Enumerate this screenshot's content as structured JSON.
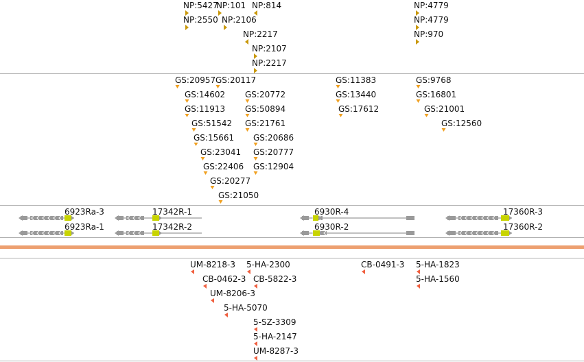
{
  "colors": {
    "np_marker": "#c9980a",
    "gs_marker": "#f0a020",
    "bottom_marker": "#f06040",
    "gene": "#9a9a9a",
    "exon_highlight": "#c8d400",
    "divider": "#eda070",
    "track_line": "#b0b0b0"
  },
  "np_features": [
    {
      "label": "NP:5427",
      "pos": 270,
      "row": 0,
      "dir": "right"
    },
    {
      "label": "NP:101",
      "pos": 318,
      "row": 0,
      "dir": "right"
    },
    {
      "label": "NP:814",
      "pos": 370,
      "row": 0,
      "dir": "left"
    },
    {
      "label": "NP:2550",
      "pos": 270,
      "row": 1,
      "dir": "right"
    },
    {
      "label": "NP:2106",
      "pos": 326,
      "row": 1,
      "dir": "right"
    },
    {
      "label": "NP:2217",
      "pos": 357,
      "row": 2,
      "dir": "left"
    },
    {
      "label": "NP:2107",
      "pos": 370,
      "row": 3,
      "dir": "right"
    },
    {
      "label": "NP:2217",
      "pos": 370,
      "row": 4,
      "dir": "right"
    },
    {
      "label": "NP:4779",
      "pos": 606,
      "row": 0,
      "dir": "right"
    },
    {
      "label": "NP:4779",
      "pos": 606,
      "row": 1,
      "dir": "right"
    },
    {
      "label": "NP:970",
      "pos": 606,
      "row": 2,
      "dir": "right"
    }
  ],
  "gs_features": [
    {
      "label": "GS:20957",
      "pos": 256,
      "row": 0
    },
    {
      "label": "GS:20117",
      "pos": 315,
      "row": 0
    },
    {
      "label": "GS:14602",
      "pos": 270,
      "row": 1
    },
    {
      "label": "GS:20772",
      "pos": 358,
      "row": 1
    },
    {
      "label": "GS:11913",
      "pos": 270,
      "row": 2
    },
    {
      "label": "GS:50894",
      "pos": 358,
      "row": 2
    },
    {
      "label": "GS:51542",
      "pos": 280,
      "row": 3
    },
    {
      "label": "GS:21761",
      "pos": 358,
      "row": 3
    },
    {
      "label": "GS:15661",
      "pos": 283,
      "row": 4
    },
    {
      "label": "GS:20686",
      "pos": 370,
      "row": 4
    },
    {
      "label": "GS:23041",
      "pos": 293,
      "row": 5
    },
    {
      "label": "GS:20777",
      "pos": 370,
      "row": 5
    },
    {
      "label": "GS:22406",
      "pos": 297,
      "row": 6
    },
    {
      "label": "GS:12904",
      "pos": 370,
      "row": 6
    },
    {
      "label": "GS:20277",
      "pos": 307,
      "row": 7
    },
    {
      "label": "GS:21050",
      "pos": 319,
      "row": 8
    },
    {
      "label": "GS:11383",
      "pos": 490,
      "row": 0
    },
    {
      "label": "GS:13440",
      "pos": 490,
      "row": 1
    },
    {
      "label": "GS:17612",
      "pos": 494,
      "row": 2
    },
    {
      "label": "GS:9768",
      "pos": 607,
      "row": 0
    },
    {
      "label": "GS:16801",
      "pos": 607,
      "row": 1
    },
    {
      "label": "GS:21001",
      "pos": 619,
      "row": 2
    },
    {
      "label": "GS:12560",
      "pos": 644,
      "row": 3
    }
  ],
  "transcripts": [
    {
      "label": "6923Ra-3",
      "start": 30,
      "end": 108,
      "row": 0,
      "exons": [
        [
          30,
          40
        ],
        [
          44,
          92
        ]
      ],
      "highlight": [
        94,
        104
      ],
      "tail_exon": null
    },
    {
      "label": "6923Ra-1",
      "start": 30,
      "end": 108,
      "row": 1,
      "exons": [
        [
          30,
          40
        ],
        [
          44,
          92
        ]
      ],
      "highlight": [
        94,
        104
      ],
      "tail_exon": null
    },
    {
      "label": "17342R-1",
      "start": 170,
      "end": 294,
      "row": 0,
      "exons": [
        [
          170,
          180
        ],
        [
          184,
          210
        ]
      ],
      "highlight": [
        222,
        232
      ],
      "tail_exon": null
    },
    {
      "label": "17342R-2",
      "start": 170,
      "end": 294,
      "row": 1,
      "exons": [
        [
          170,
          180
        ],
        [
          184,
          210
        ]
      ],
      "highlight": [
        222,
        232
      ],
      "tail_exon": null
    },
    {
      "label": "6930R-4",
      "start": 440,
      "end": 604,
      "row": 0,
      "exons": [
        [
          440,
          450
        ],
        [
          460,
          470
        ]
      ],
      "highlight": [
        456,
        464
      ],
      "tail_exon": [
        592,
        604
      ]
    },
    {
      "label": "6930R-2",
      "start": 440,
      "end": 604,
      "row": 1,
      "exons": [
        [
          440,
          450
        ],
        [
          466,
          476
        ]
      ],
      "highlight": [
        456,
        466
      ],
      "tail_exon": [
        592,
        604
      ]
    },
    {
      "label": "17360R-3",
      "start": 652,
      "end": 746,
      "row": 0,
      "exons": [
        [
          652,
          664
        ],
        [
          668,
          726
        ]
      ],
      "highlight": [
        730,
        742
      ],
      "tail_exon": null
    },
    {
      "label": "17360R-2",
      "start": 652,
      "end": 746,
      "row": 1,
      "exons": [
        [
          652,
          664
        ],
        [
          668,
          726
        ]
      ],
      "highlight": [
        730,
        742
      ],
      "tail_exon": null
    }
  ],
  "bottom_features": [
    {
      "label": "UM-8218-3",
      "pos": 278,
      "row": 0
    },
    {
      "label": "5-HA-2300",
      "pos": 360,
      "row": 0
    },
    {
      "label": "CB-0462-3",
      "pos": 296,
      "row": 1
    },
    {
      "label": "CB-5822-3",
      "pos": 370,
      "row": 1
    },
    {
      "label": "UM-8206-3",
      "pos": 307,
      "row": 2
    },
    {
      "label": "5-HA-5070",
      "pos": 327,
      "row": 3
    },
    {
      "label": "5-SZ-3309",
      "pos": 370,
      "row": 4
    },
    {
      "label": "5-HA-2147",
      "pos": 370,
      "row": 5
    },
    {
      "label": "UM-8287-3",
      "pos": 370,
      "row": 6
    },
    {
      "label": "CB-0491-3",
      "pos": 527,
      "row": 0
    },
    {
      "label": "5-HA-1823",
      "pos": 607,
      "row": 0
    },
    {
      "label": "5-HA-1560",
      "pos": 607,
      "row": 1
    }
  ]
}
